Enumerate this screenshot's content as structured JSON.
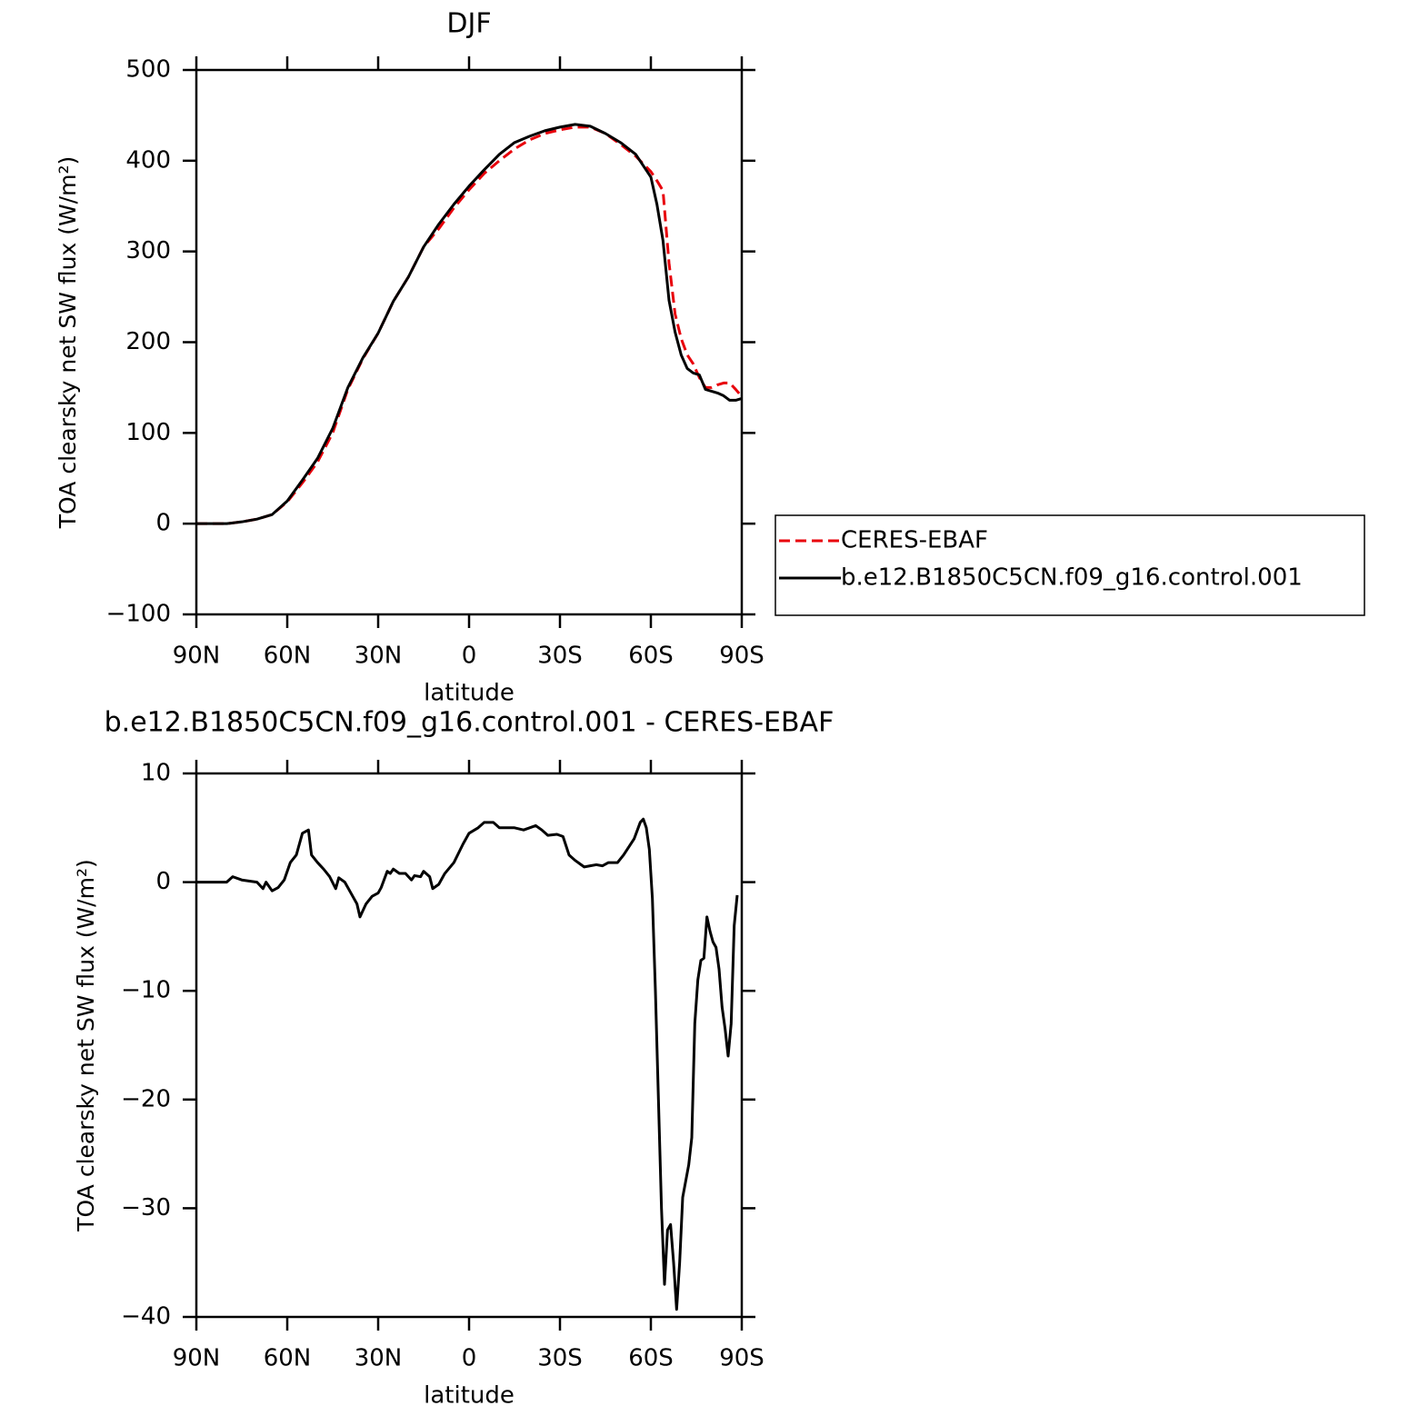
{
  "chart_data": [
    {
      "type": "line",
      "title": "DJF",
      "xlabel": "latitude",
      "ylabel": "TOA clearsky net SW flux (W/m²)",
      "x": [
        90,
        85,
        80,
        75,
        70,
        65,
        60,
        55,
        50,
        45,
        40,
        35,
        30,
        25,
        20,
        15,
        10,
        5,
        0,
        -5,
        -10,
        -15,
        -20,
        -25,
        -30,
        -35,
        -40,
        -45,
        -50,
        -55,
        -60,
        -62,
        -64,
        -66,
        -68,
        -70,
        -72,
        -74,
        -76,
        -78,
        -80,
        -82,
        -84,
        -86,
        -88,
        -90
      ],
      "series": [
        {
          "name": "CERES-EBAF",
          "color": "#e8000b",
          "style": "dashed",
          "values": [
            0,
            0,
            0,
            2,
            5,
            10,
            24,
            45,
            68,
            100,
            148,
            182,
            210,
            245,
            272,
            305,
            325,
            348,
            368,
            386,
            400,
            413,
            423,
            430,
            434,
            437,
            437,
            430,
            418,
            405,
            388,
            378,
            367,
            287,
            231,
            204,
            186,
            176,
            161,
            150,
            150,
            153,
            155,
            155,
            148,
            140
          ]
        },
        {
          "name": "b.e12.B1850C5CN.f09_g16.control.001",
          "color": "#000000",
          "style": "solid",
          "values": [
            0,
            0,
            0,
            2,
            5,
            10,
            25,
            48,
            72,
            105,
            150,
            183,
            210,
            245,
            272,
            305,
            330,
            352,
            372,
            390,
            407,
            420,
            427,
            433,
            437,
            440,
            438,
            430,
            420,
            407,
            382,
            352,
            312,
            246,
            211,
            186,
            171,
            166,
            164,
            148,
            146,
            144,
            141,
            136,
            136,
            138
          ]
        }
      ],
      "xlim": [
        90,
        -90
      ],
      "xticks": [
        {
          "value": 90,
          "label": "90N"
        },
        {
          "value": 60,
          "label": "60N"
        },
        {
          "value": 30,
          "label": "30N"
        },
        0,
        {
          "value": -30,
          "label": "30S"
        },
        {
          "value": -60,
          "label": "60S"
        },
        {
          "value": -90,
          "label": "90S"
        }
      ],
      "ylim": [
        -100,
        500
      ],
      "yticks": [
        {
          "value": -100,
          "label": "−100"
        },
        0,
        100,
        200,
        300,
        400,
        500
      ],
      "legend": "right"
    },
    {
      "type": "line",
      "title": "b.e12.B1850C5CN.f09_g16.control.001 - CERES-EBAF",
      "xlabel": "latitude",
      "ylabel": "TOA clearsky net SW flux (W/m²)",
      "x": [
        90,
        80,
        78,
        75,
        70,
        68,
        67,
        65,
        63,
        61,
        59,
        57,
        55,
        53,
        52,
        50,
        48,
        46,
        44,
        43,
        41,
        39,
        37,
        36,
        34,
        32,
        30,
        29,
        27,
        26,
        25,
        23,
        21,
        19,
        18,
        16,
        15,
        13,
        12,
        10,
        8,
        5,
        2,
        0,
        -3,
        -5,
        -8,
        -10,
        -12,
        -15,
        -18,
        -20,
        -22,
        -24,
        -26,
        -29,
        -31,
        -33,
        -35,
        -38,
        -40,
        -42,
        -44,
        -46,
        -49,
        -51,
        -54.5,
        -56.5,
        -57.5,
        -58.5,
        -59.5,
        -60.5,
        -61.5,
        -62.5,
        -63.5,
        -64.5,
        -65.5,
        -66.5,
        -67.5,
        -68.5,
        -69.5,
        -70.5,
        -71.5,
        -72.5,
        -73.5,
        -74.5,
        -75.5,
        -76.5,
        -77.5,
        -78.5,
        -79.5,
        -80.5,
        -81.5,
        -82.5,
        -83.5,
        -84.5,
        -85.5,
        -86.5,
        -87.5,
        -88.5
      ],
      "series": [
        {
          "color": "#000000",
          "style": "solid",
          "values": [
            0,
            0,
            0.5,
            0.2,
            0,
            -0.6,
            0,
            -0.8,
            -0.5,
            0.2,
            1.8,
            2.5,
            4.5,
            4.8,
            2.5,
            1.8,
            1.2,
            0.5,
            -0.6,
            0.4,
            0,
            -1,
            -2,
            -3.2,
            -2,
            -1.3,
            -1,
            -0.5,
            1,
            0.8,
            1.2,
            0.8,
            0.8,
            0.2,
            0.6,
            0.5,
            1,
            0.5,
            -0.6,
            -0.2,
            0.8,
            1.8,
            3.5,
            4.5,
            5,
            5.5,
            5.5,
            5,
            5,
            5,
            4.8,
            5,
            5.2,
            4.8,
            4.3,
            4.4,
            4.2,
            2.5,
            2,
            1.4,
            1.5,
            1.6,
            1.5,
            1.8,
            1.8,
            2.5,
            4,
            5.5,
            5.8,
            5,
            3,
            -1.5,
            -10,
            -20,
            -30,
            -37,
            -32,
            -31.5,
            -35,
            -39.3,
            -35,
            -29,
            -27.5,
            -26,
            -23.5,
            -13,
            -9,
            -7.2,
            -7,
            -3.2,
            -4.5,
            -5.5,
            -6,
            -8,
            -11.5,
            -13.5,
            -16,
            -13,
            -4,
            -1.2
          ]
        }
      ],
      "xlim": [
        90,
        -90
      ],
      "xticks": [
        {
          "value": 90,
          "label": "90N"
        },
        {
          "value": 60,
          "label": "60N"
        },
        {
          "value": 30,
          "label": "30N"
        },
        0,
        {
          "value": -30,
          "label": "30S"
        },
        {
          "value": -60,
          "label": "60S"
        },
        {
          "value": -90,
          "label": "90S"
        }
      ],
      "ylim": [
        -40,
        10
      ],
      "yticks": [
        {
          "value": -40,
          "label": "−40"
        },
        {
          "value": -30,
          "label": "−30"
        },
        {
          "value": -20,
          "label": "−20"
        },
        {
          "value": -10,
          "label": "−10"
        },
        0,
        10
      ]
    }
  ]
}
